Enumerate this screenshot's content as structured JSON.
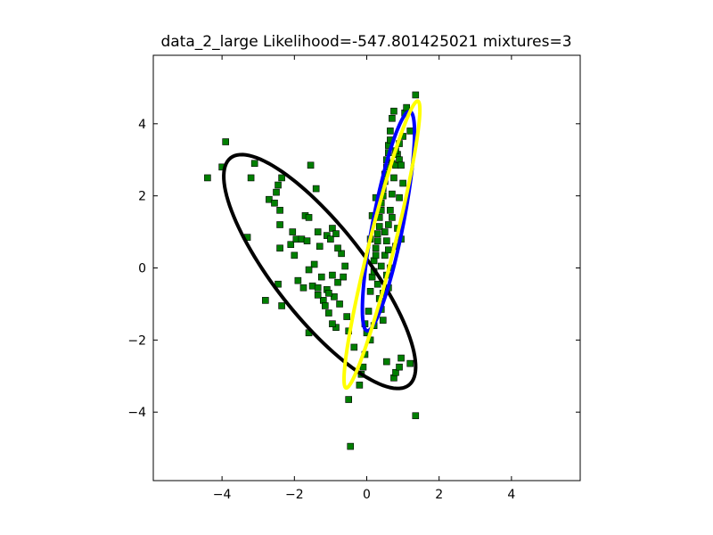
{
  "chart_data": {
    "type": "scatter",
    "title": "data_2_large Likelihood=-547.801425021 mixtures=3",
    "xlabel": "",
    "ylabel": "",
    "xlim": [
      -5.9,
      5.9
    ],
    "ylim": [
      -5.9,
      5.9
    ],
    "xticks": [
      -4,
      -2,
      0,
      2,
      4
    ],
    "yticks": [
      -4,
      -2,
      0,
      2,
      4
    ],
    "tick_labels": {
      "x": [
        "−4",
        "−2",
        "0",
        "2",
        "4"
      ],
      "y": [
        "−4",
        "−2",
        "0",
        "2",
        "4"
      ]
    },
    "grid": false,
    "legend": "none",
    "marker_color": "#007f00",
    "points": [
      [
        -4.4,
        2.5
      ],
      [
        -4.0,
        2.8
      ],
      [
        -3.9,
        3.5
      ],
      [
        -3.2,
        2.5
      ],
      [
        -3.1,
        2.9
      ],
      [
        -3.3,
        0.85
      ],
      [
        -2.8,
        -0.9
      ],
      [
        -2.7,
        1.9
      ],
      [
        -2.55,
        1.8
      ],
      [
        -2.5,
        2.1
      ],
      [
        -2.45,
        2.3
      ],
      [
        -2.4,
        1.6
      ],
      [
        -2.35,
        2.5
      ],
      [
        -2.4,
        1.2
      ],
      [
        -2.4,
        0.55
      ],
      [
        -2.45,
        -0.45
      ],
      [
        -2.35,
        -1.05
      ],
      [
        -2.1,
        0.65
      ],
      [
        -2.0,
        0.35
      ],
      [
        -2.05,
        1.0
      ],
      [
        -1.95,
        0.8
      ],
      [
        -1.9,
        -0.35
      ],
      [
        -1.8,
        0.8
      ],
      [
        -1.75,
        -0.55
      ],
      [
        -1.7,
        1.45
      ],
      [
        -1.65,
        0.75
      ],
      [
        -1.6,
        1.4
      ],
      [
        -1.55,
        2.85
      ],
      [
        -1.4,
        2.2
      ],
      [
        -1.35,
        1.0
      ],
      [
        -1.3,
        0.6
      ],
      [
        -1.2,
        -0.9
      ],
      [
        -1.1,
        0.9
      ],
      [
        -1.0,
        0.8
      ],
      [
        -0.95,
        1.1
      ],
      [
        -0.85,
        0.95
      ],
      [
        -0.7,
        0.4
      ],
      [
        -0.65,
        -0.25
      ],
      [
        -0.6,
        0.05
      ],
      [
        -0.55,
        -1.35
      ],
      [
        -0.5,
        -1.75
      ],
      [
        -1.1,
        -0.6
      ],
      [
        -1.05,
        -1.25
      ],
      [
        -0.9,
        -0.8
      ],
      [
        -0.85,
        -1.65
      ],
      [
        -0.8,
        -0.4
      ],
      [
        -0.75,
        -1.0
      ],
      [
        -1.45,
        0.1
      ],
      [
        -1.5,
        -0.5
      ],
      [
        -1.35,
        -0.75
      ],
      [
        -1.25,
        -0.25
      ],
      [
        -1.6,
        -1.8
      ],
      [
        -0.95,
        -1.55
      ],
      [
        -1.15,
        -1.05
      ],
      [
        -0.95,
        -0.2
      ],
      [
        -0.8,
        0.55
      ],
      [
        -1.05,
        -0.7
      ],
      [
        -1.6,
        -0.05
      ],
      [
        -1.35,
        -0.55
      ],
      [
        -0.5,
        -3.65
      ],
      [
        -0.45,
        -4.95
      ],
      [
        -0.35,
        -2.2
      ],
      [
        -0.2,
        -3.25
      ],
      [
        -0.15,
        -2.95
      ],
      [
        -0.1,
        -2.75
      ],
      [
        -0.05,
        -2.4
      ],
      [
        -0.05,
        -1.55
      ],
      [
        0.05,
        -1.2
      ],
      [
        0.1,
        -0.65
      ],
      [
        0.15,
        -0.25
      ],
      [
        0.2,
        0.2
      ],
      [
        0.25,
        0.55
      ],
      [
        0.3,
        0.95
      ],
      [
        0.35,
        1.4
      ],
      [
        0.4,
        1.8
      ],
      [
        0.45,
        2.2
      ],
      [
        0.5,
        2.6
      ],
      [
        0.55,
        3.0
      ],
      [
        0.6,
        3.4
      ],
      [
        0.65,
        3.8
      ],
      [
        0.7,
        4.15
      ],
      [
        0.75,
        4.35
      ],
      [
        0.2,
        -0.1
      ],
      [
        0.25,
        0.35
      ],
      [
        0.3,
        0.75
      ],
      [
        0.35,
        1.15
      ],
      [
        0.4,
        1.6
      ],
      [
        0.45,
        2.0
      ],
      [
        0.5,
        2.4
      ],
      [
        0.55,
        2.8
      ],
      [
        0.6,
        3.2
      ],
      [
        0.65,
        3.55
      ],
      [
        0.7,
        2.9
      ],
      [
        0.3,
        -0.45
      ],
      [
        0.35,
        -0.85
      ],
      [
        0.4,
        -1.15
      ],
      [
        0.45,
        -1.45
      ],
      [
        0.5,
        0.35
      ],
      [
        0.55,
        0.75
      ],
      [
        0.6,
        1.2
      ],
      [
        0.65,
        1.6
      ],
      [
        0.7,
        2.05
      ],
      [
        0.75,
        2.5
      ],
      [
        0.8,
        2.85
      ],
      [
        0.85,
        3.15
      ],
      [
        0.9,
        3.0
      ],
      [
        0.95,
        2.85
      ],
      [
        1.0,
        3.65
      ],
      [
        1.05,
        4.3
      ],
      [
        1.1,
        4.45
      ],
      [
        1.2,
        3.8
      ],
      [
        1.35,
        4.8
      ],
      [
        0.55,
        -0.2
      ],
      [
        0.6,
        -0.55
      ],
      [
        0.65,
        0.0
      ],
      [
        0.8,
        0.6
      ],
      [
        0.85,
        1.1
      ],
      [
        0.9,
        1.95
      ],
      [
        0.95,
        0.8
      ],
      [
        1.0,
        2.35
      ],
      [
        0.55,
        -2.6
      ],
      [
        0.75,
        -3.05
      ],
      [
        0.8,
        -2.9
      ],
      [
        0.9,
        -2.75
      ],
      [
        0.95,
        -2.5
      ],
      [
        1.2,
        -2.65
      ],
      [
        1.35,
        -4.1
      ],
      [
        0.1,
        0.8
      ],
      [
        0.15,
        1.45
      ],
      [
        0.25,
        1.95
      ],
      [
        0.4,
        0.05
      ],
      [
        0.45,
        -0.7
      ],
      [
        0.5,
        1.0
      ],
      [
        0.6,
        0.5
      ],
      [
        0.7,
        1.4
      ],
      [
        0.2,
        -1.6
      ],
      [
        0.1,
        -2.0
      ],
      [
        0.0,
        -1.8
      ],
      [
        0.8,
        3.25
      ],
      [
        0.9,
        3.45
      ]
    ],
    "ellipses": [
      {
        "color": "#000000",
        "cx": -1.3,
        "cy": -0.1,
        "rx": 4.0,
        "ry": 1.25,
        "angle_deg": -52
      },
      {
        "color": "#0000ff",
        "cx": 0.6,
        "cy": 1.3,
        "rx": 3.1,
        "ry": 0.42,
        "angle_deg": 79
      },
      {
        "color": "#ffff00",
        "cx": 0.42,
        "cy": 0.65,
        "rx": 4.1,
        "ry": 0.35,
        "angle_deg": 76
      }
    ]
  }
}
